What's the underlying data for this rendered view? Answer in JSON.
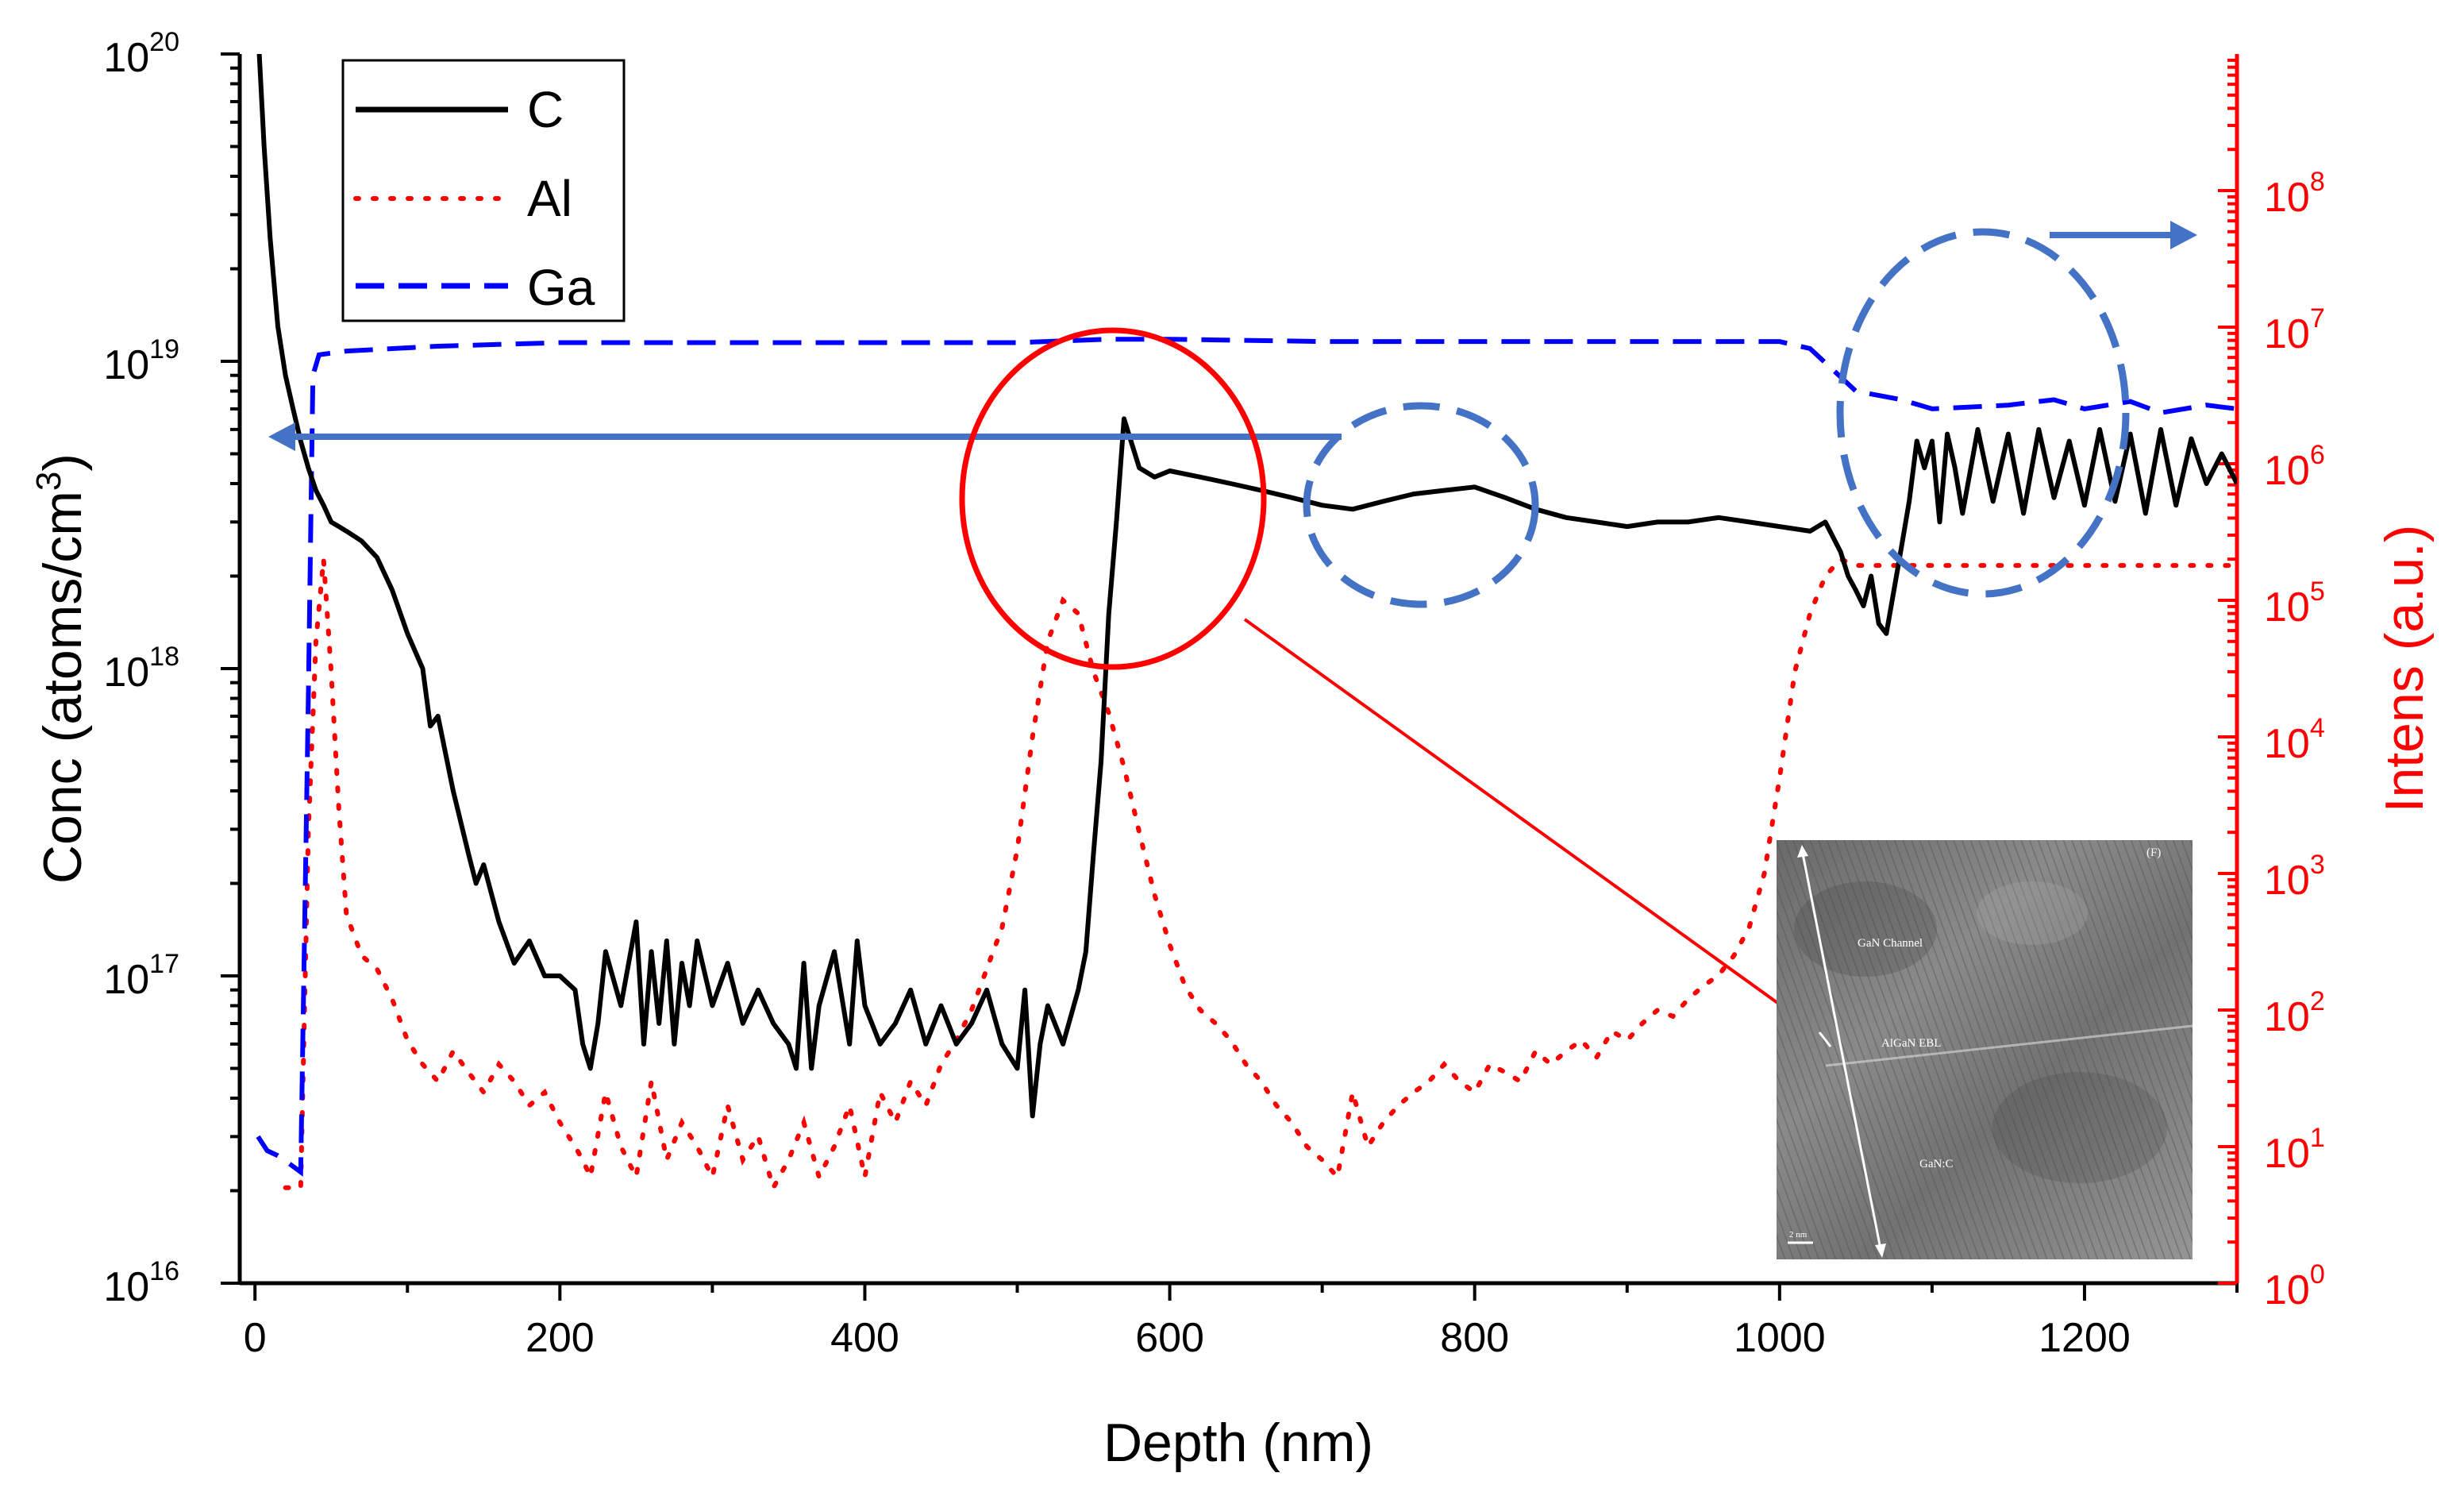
{
  "chart_data": {
    "type": "line",
    "title": "",
    "xlabel": "Depth (nm)",
    "ylabel_left": {
      "main": "Conc (atoms/cm",
      "sup": "3",
      "close": ")"
    },
    "ylabel_right": "Intens (a.u.)",
    "xlim": [
      -10,
      1300
    ],
    "ylim_left_log10": [
      16,
      20
    ],
    "ylim_right_log10": [
      0,
      9
    ],
    "x_ticks": [
      0,
      200,
      400,
      600,
      800,
      1000,
      1200
    ],
    "x_tick_labels": [
      "0",
      "200",
      "400",
      "600",
      "800",
      "1000",
      "1200"
    ],
    "y_left_ticks": [
      {
        "base": "10",
        "exp": "16"
      },
      {
        "base": "10",
        "exp": "17"
      },
      {
        "base": "10",
        "exp": "18"
      },
      {
        "base": "10",
        "exp": "19"
      },
      {
        "base": "10",
        "exp": "20"
      }
    ],
    "y_right_ticks": [
      {
        "base": "10",
        "exp": "0"
      },
      {
        "base": "10",
        "exp": "1"
      },
      {
        "base": "10",
        "exp": "2"
      },
      {
        "base": "10",
        "exp": "3"
      },
      {
        "base": "10",
        "exp": "4"
      },
      {
        "base": "10",
        "exp": "5"
      },
      {
        "base": "10",
        "exp": "6"
      },
      {
        "base": "10",
        "exp": "7"
      },
      {
        "base": "10",
        "exp": "8"
      }
    ],
    "legend": {
      "position": "top-left",
      "entries": [
        "C",
        "Al",
        "Ga"
      ]
    },
    "series": [
      {
        "name": "C",
        "axis": "left",
        "color": "#000000",
        "style": "solid",
        "x": [
          2,
          6,
          10,
          15,
          20,
          25,
          30,
          35,
          40,
          45,
          50,
          55,
          60,
          70,
          80,
          90,
          100,
          110,
          115,
          120,
          130,
          140,
          145,
          150,
          160,
          170,
          180,
          190,
          200,
          210,
          215,
          220,
          225,
          230,
          240,
          250,
          255,
          260,
          265,
          270,
          275,
          280,
          285,
          290,
          300,
          310,
          320,
          330,
          340,
          350,
          355,
          360,
          365,
          370,
          380,
          390,
          395,
          400,
          410,
          420,
          430,
          440,
          450,
          460,
          470,
          480,
          490,
          500,
          505,
          510,
          515,
          520,
          530,
          540,
          545,
          550,
          555,
          560,
          565,
          570,
          580,
          590,
          600,
          620,
          640,
          660,
          680,
          700,
          720,
          740,
          760,
          780,
          800,
          820,
          840,
          860,
          880,
          900,
          920,
          940,
          960,
          980,
          1000,
          1020,
          1030,
          1040,
          1045,
          1050,
          1055,
          1060,
          1065,
          1070,
          1075,
          1080,
          1085,
          1090,
          1095,
          1100,
          1105,
          1110,
          1115,
          1120,
          1130,
          1140,
          1150,
          1160,
          1170,
          1180,
          1190,
          1200,
          1210,
          1220,
          1230,
          1240,
          1250,
          1260,
          1270,
          1280,
          1290,
          1300
        ],
        "y": [
          1.2e+20,
          5e+19,
          2.5e+19,
          1.3e+19,
          9e+18,
          7e+18,
          5.5e+18,
          4.5e+18,
          3.8e+18,
          3.4e+18,
          3e+18,
          2.9e+18,
          2.8e+18,
          2.6e+18,
          2.3e+18,
          1.8e+18,
          1.3e+18,
          1e+18,
          6.5e+17,
          7e+17,
          4e+17,
          2.5e+17,
          2e+17,
          2.3e+17,
          1.5e+17,
          1.1e+17,
          1.3e+17,
          1e+17,
          1e+17,
          9e+16,
          6e+16,
          5e+16,
          7e+16,
          1.2e+17,
          8e+16,
          1.5e+17,
          6e+16,
          1.2e+17,
          7e+16,
          1.3e+17,
          6e+16,
          1.1e+17,
          8e+16,
          1.3e+17,
          8e+16,
          1.1e+17,
          7e+16,
          9e+16,
          7e+16,
          6e+16,
          5e+16,
          1.1e+17,
          5e+16,
          8e+16,
          1.2e+17,
          6e+16,
          1.3e+17,
          8e+16,
          6e+16,
          7e+16,
          9e+16,
          6e+16,
          8e+16,
          6e+16,
          7e+16,
          9e+16,
          6e+16,
          5e+16,
          9e+16,
          3.5e+16,
          6e+16,
          8e+16,
          6e+16,
          9e+16,
          1.2e+17,
          2.5e+17,
          5e+17,
          1.5e+18,
          3e+18,
          6.5e+18,
          4.5e+18,
          4.2e+18,
          4.4e+18,
          4.2e+18,
          4e+18,
          3.8e+18,
          3.6e+18,
          3.4e+18,
          3.3e+18,
          3.5e+18,
          3.7e+18,
          3.8e+18,
          3.9e+18,
          3.6e+18,
          3.3e+18,
          3.1e+18,
          3e+18,
          2.9e+18,
          3e+18,
          3e+18,
          3.1e+18,
          3e+18,
          2.9e+18,
          2.8e+18,
          3e+18,
          2.4e+18,
          2e+18,
          1.8e+18,
          1.6e+18,
          2e+18,
          1.4e+18,
          1.3e+18,
          1.8e+18,
          2.5e+18,
          3.5e+18,
          5.5e+18,
          4.5e+18,
          5.5e+18,
          3e+18,
          5.8e+18,
          4.5e+18,
          3.2e+18,
          6e+18,
          3.5e+18,
          5.8e+18,
          3.2e+18,
          6e+18,
          3.6e+18,
          5.5e+18,
          3.4e+18,
          6e+18,
          3.5e+18,
          5.8e+18,
          3.2e+18,
          6e+18,
          3.4e+18,
          5.6e+18,
          4e+18,
          5e+18,
          4e+18
        ]
      },
      {
        "name": "Al",
        "axis": "right",
        "color": "#ff0000",
        "style": "dotted",
        "x": [
          20,
          30,
          35,
          40,
          45,
          50,
          55,
          60,
          70,
          80,
          90,
          100,
          110,
          120,
          130,
          140,
          150,
          160,
          170,
          180,
          190,
          200,
          210,
          215,
          220,
          230,
          240,
          250,
          260,
          270,
          280,
          290,
          300,
          310,
          320,
          330,
          340,
          350,
          360,
          370,
          380,
          390,
          400,
          410,
          420,
          430,
          440,
          450,
          460,
          470,
          480,
          490,
          500,
          510,
          520,
          530,
          540,
          550,
          560,
          570,
          580,
          590,
          600,
          610,
          620,
          630,
          640,
          650,
          660,
          670,
          680,
          690,
          700,
          710,
          720,
          730,
          740,
          750,
          760,
          770,
          780,
          790,
          800,
          810,
          820,
          830,
          840,
          850,
          860,
          870,
          880,
          890,
          900,
          910,
          920,
          930,
          940,
          950,
          960,
          970,
          980,
          990,
          1000,
          1010,
          1020,
          1030,
          1040,
          1050,
          1060,
          1080,
          1100,
          1150,
          1200,
          1250,
          1300
        ],
        "y": [
          5,
          5,
          2000.0,
          50000.0,
          200000.0,
          30000.0,
          3000.0,
          500,
          250,
          200,
          120,
          60,
          40,
          30,
          50,
          35,
          25,
          40,
          30,
          20,
          25,
          15,
          10,
          8,
          6,
          25,
          10,
          6,
          30,
          8,
          15,
          10,
          6,
          20,
          8,
          12,
          5,
          8,
          15,
          6,
          10,
          20,
          6,
          25,
          15,
          30,
          20,
          40,
          60,
          100,
          200,
          400,
          1500,
          10000.0,
          50000.0,
          100000.0,
          80000.0,
          30000.0,
          15000.0,
          6000.0,
          2000.0,
          700,
          300,
          150,
          100,
          80,
          60,
          40,
          30,
          20,
          15,
          10,
          8,
          6,
          25,
          10,
          15,
          20,
          25,
          30,
          40,
          30,
          25,
          40,
          35,
          30,
          50,
          40,
          50,
          60,
          45,
          70,
          60,
          80,
          100,
          90,
          120,
          150,
          180,
          250,
          400,
          1000.0,
          5000.0,
          30000.0,
          80000.0,
          150000.0,
          200000.0,
          180000.0,
          180000.0,
          180000.0,
          180000.0,
          180000.0,
          180000.0,
          180000.0,
          180000.0
        ]
      },
      {
        "name": "Ga",
        "axis": "left",
        "color": "#0000ff",
        "style": "dashed",
        "x": [
          2,
          8,
          15,
          20,
          25,
          30,
          35,
          38,
          42,
          60,
          120,
          200,
          300,
          400,
          500,
          560,
          600,
          700,
          800,
          900,
          1000,
          1020,
          1050,
          1080,
          1100,
          1150,
          1180,
          1200,
          1230,
          1250,
          1280,
          1300
        ],
        "y": [
          3e+16,
          2.7e+16,
          2.6e+16,
          2.5e+16,
          2.4e+16,
          2.3e+16,
          8e+17,
          9e+18,
          1.05e+19,
          1.08e+19,
          1.12e+19,
          1.15e+19,
          1.15e+19,
          1.15e+19,
          1.15e+19,
          1.18e+19,
          1.18e+19,
          1.16e+19,
          1.16e+19,
          1.16e+19,
          1.16e+19,
          1.1e+19,
          8e+18,
          7.5e+18,
          7e+18,
          7.2e+18,
          7.5e+18,
          7e+18,
          7.4e+18,
          6.8e+18,
          7.2e+18,
          7e+18
        ]
      }
    ],
    "annotations": {
      "inset_labels": [
        "GaN Channel",
        "AlGaN EBL",
        "GaN:C",
        "(F)",
        "2 nm"
      ]
    }
  }
}
